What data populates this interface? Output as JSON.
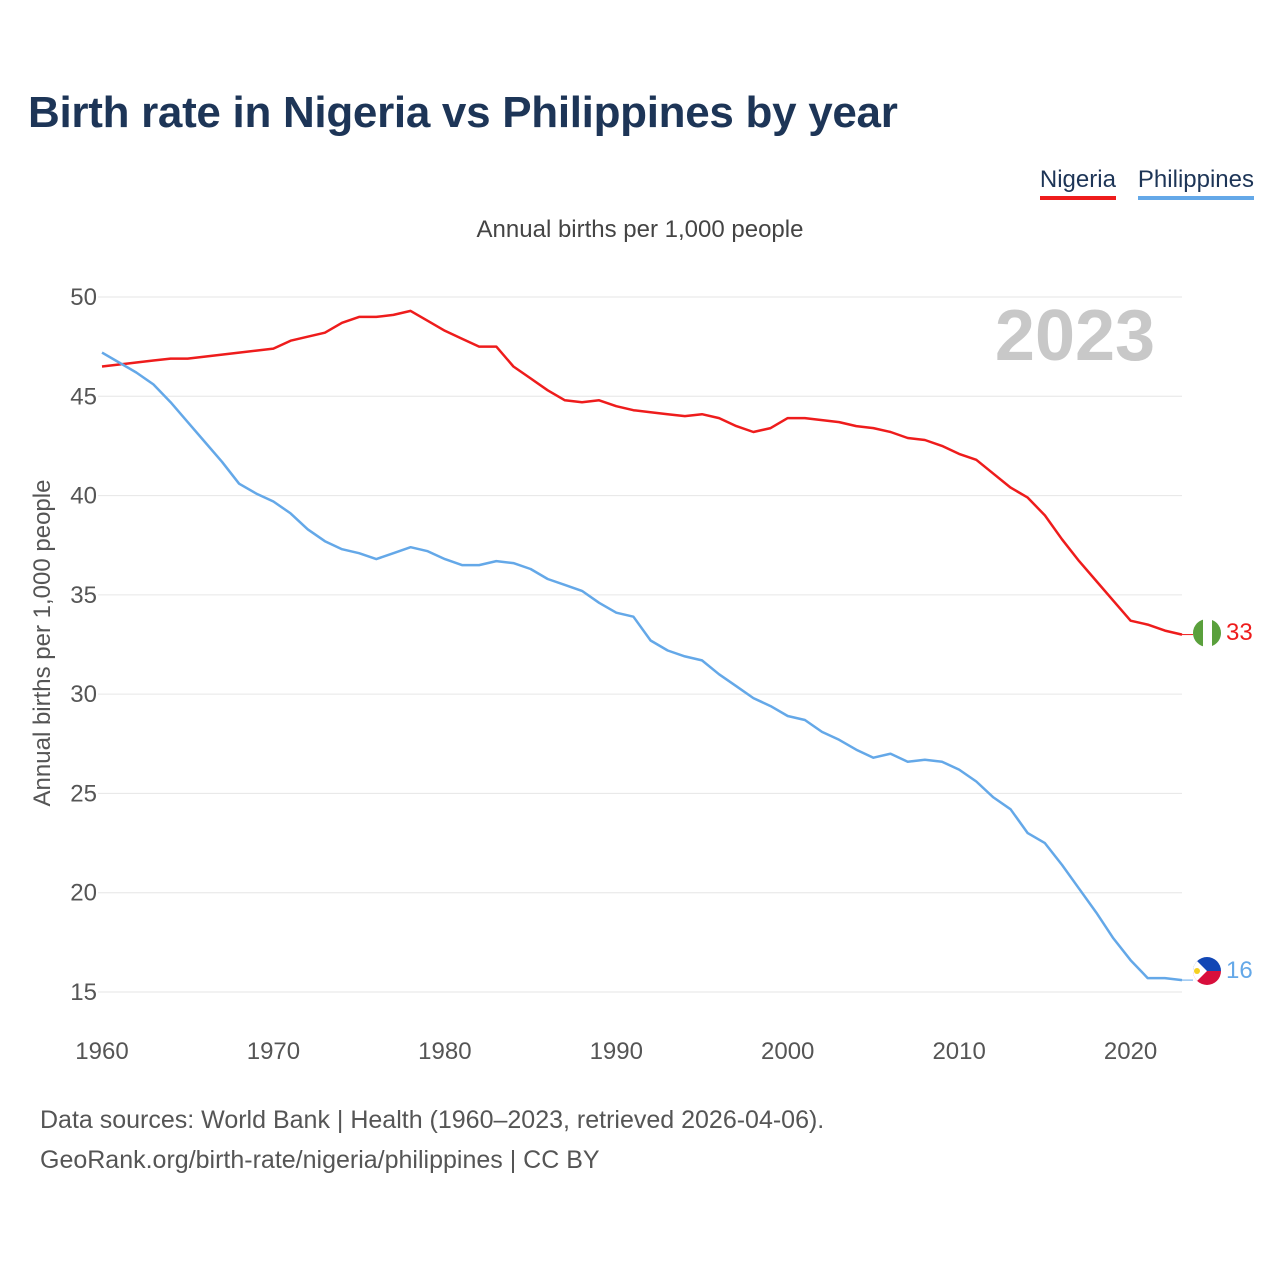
{
  "title": "Birth rate in Nigeria vs Philippines by year",
  "subtitle": "Annual births per 1,000 people",
  "legend": [
    {
      "label": "Nigeria",
      "color": "#ee1c1c"
    },
    {
      "label": "Philippines",
      "color": "#64a8e8"
    }
  ],
  "year_watermark": "2023",
  "end_labels": {
    "nigeria": "33",
    "philippines": "16"
  },
  "footer": {
    "line1": "Data sources: World Bank | Health (1960–2023, retrieved 2026-04-06).",
    "line2": "GeoRank.org/birth-rate/nigeria/philippines | CC BY"
  },
  "chart_data": {
    "type": "line",
    "title": "Birth rate in Nigeria vs Philippines by year",
    "subtitle": "Annual births per 1,000 people",
    "xlabel": "",
    "ylabel": "Annual births per 1,000 people",
    "xlim": [
      1960,
      2023
    ],
    "ylim": [
      15,
      50
    ],
    "yticks": [
      15,
      20,
      25,
      30,
      35,
      40,
      45,
      50
    ],
    "xticks": [
      1960,
      1970,
      1980,
      1990,
      2000,
      2010,
      2020
    ],
    "grid": true,
    "legend_position": "top-right",
    "x": [
      1960,
      1961,
      1962,
      1963,
      1964,
      1965,
      1966,
      1967,
      1968,
      1969,
      1970,
      1971,
      1972,
      1973,
      1974,
      1975,
      1976,
      1977,
      1978,
      1979,
      1980,
      1981,
      1982,
      1983,
      1984,
      1985,
      1986,
      1987,
      1988,
      1989,
      1990,
      1991,
      1992,
      1993,
      1994,
      1995,
      1996,
      1997,
      1998,
      1999,
      2000,
      2001,
      2002,
      2003,
      2004,
      2005,
      2006,
      2007,
      2008,
      2009,
      2010,
      2011,
      2012,
      2013,
      2014,
      2015,
      2016,
      2017,
      2018,
      2019,
      2020,
      2021,
      2022,
      2023
    ],
    "series": [
      {
        "name": "Nigeria",
        "color": "#ee1c1c",
        "values": [
          46.5,
          46.6,
          46.7,
          46.8,
          46.9,
          46.9,
          47.0,
          47.1,
          47.2,
          47.3,
          47.4,
          47.8,
          48.0,
          48.2,
          48.7,
          49.0,
          49.0,
          49.1,
          49.3,
          48.8,
          48.3,
          47.9,
          47.5,
          47.5,
          46.5,
          45.9,
          45.3,
          44.8,
          44.7,
          44.8,
          44.5,
          44.3,
          44.2,
          44.1,
          44.0,
          44.1,
          43.9,
          43.5,
          43.2,
          43.4,
          43.9,
          43.9,
          43.8,
          43.7,
          43.5,
          43.4,
          43.2,
          42.9,
          42.8,
          42.5,
          42.1,
          41.8,
          41.1,
          40.4,
          39.9,
          39.0,
          37.8,
          36.7,
          35.7,
          34.7,
          33.7,
          33.5,
          33.2,
          33.0
        ]
      },
      {
        "name": "Philippines",
        "color": "#64a8e8",
        "values": [
          47.2,
          46.7,
          46.2,
          45.6,
          44.7,
          43.7,
          42.7,
          41.7,
          40.6,
          40.1,
          39.7,
          39.1,
          38.3,
          37.7,
          37.3,
          37.1,
          36.8,
          37.1,
          37.4,
          37.2,
          36.8,
          36.5,
          36.5,
          36.7,
          36.6,
          36.3,
          35.8,
          35.5,
          35.2,
          34.6,
          34.1,
          33.9,
          32.7,
          32.2,
          31.9,
          31.7,
          31.0,
          30.4,
          29.8,
          29.4,
          28.9,
          28.7,
          28.1,
          27.7,
          27.2,
          26.8,
          27.0,
          26.6,
          26.7,
          26.6,
          26.2,
          25.6,
          24.8,
          24.2,
          23.0,
          22.5,
          21.4,
          20.2,
          19.0,
          17.7,
          16.6,
          15.7,
          15.7,
          15.6
        ]
      }
    ]
  }
}
